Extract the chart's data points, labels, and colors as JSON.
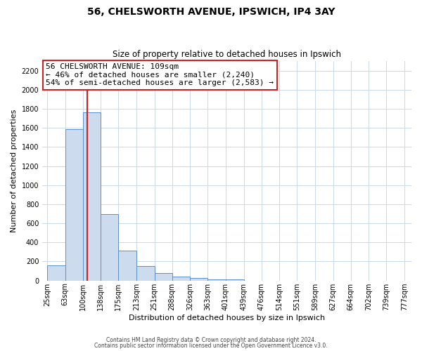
{
  "title1": "56, CHELSWORTH AVENUE, IPSWICH, IP4 3AY",
  "title2": "Size of property relative to detached houses in Ipswich",
  "xlabel": "Distribution of detached houses by size in Ipswich",
  "ylabel": "Number of detached properties",
  "bin_labels": [
    "25sqm",
    "63sqm",
    "100sqm",
    "138sqm",
    "175sqm",
    "213sqm",
    "251sqm",
    "288sqm",
    "326sqm",
    "363sqm",
    "401sqm",
    "439sqm",
    "476sqm",
    "514sqm",
    "551sqm",
    "589sqm",
    "627sqm",
    "664sqm",
    "702sqm",
    "739sqm",
    "777sqm"
  ],
  "label_values": [
    25,
    63,
    100,
    138,
    175,
    213,
    251,
    288,
    326,
    363,
    401,
    439,
    476,
    514,
    551,
    589,
    627,
    664,
    702,
    739,
    777
  ],
  "bar_heights": [
    160,
    1590,
    1760,
    700,
    315,
    155,
    80,
    45,
    25,
    15,
    10,
    0,
    0,
    0,
    0,
    0,
    0,
    0,
    0,
    0
  ],
  "bar_color": "#ccdcee",
  "bar_edge_color": "#5b8fc9",
  "red_line_x": 109,
  "red_line_color": "#cc2222",
  "annotation_title": "56 CHELSWORTH AVENUE: 109sqm",
  "annotation_line1": "← 46% of detached houses are smaller (2,240)",
  "annotation_line2": "54% of semi-detached houses are larger (2,583) →",
  "annotation_box_facecolor": "#ffffff",
  "annotation_box_edgecolor": "#cc2222",
  "ylim": [
    0,
    2300
  ],
  "yticks": [
    0,
    200,
    400,
    600,
    800,
    1000,
    1200,
    1400,
    1600,
    1800,
    2000,
    2200
  ],
  "footer1": "Contains HM Land Registry data © Crown copyright and database right 2024.",
  "footer2": "Contains public sector information licensed under the Open Government Licence v3.0.",
  "bg_color": "#ffffff",
  "grid_color": "#c8d8e8",
  "title1_fontsize": 10,
  "title2_fontsize": 8.5,
  "xlabel_fontsize": 8,
  "ylabel_fontsize": 8,
  "tick_fontsize": 7,
  "annotation_fontsize": 8,
  "footer_fontsize": 5.5
}
